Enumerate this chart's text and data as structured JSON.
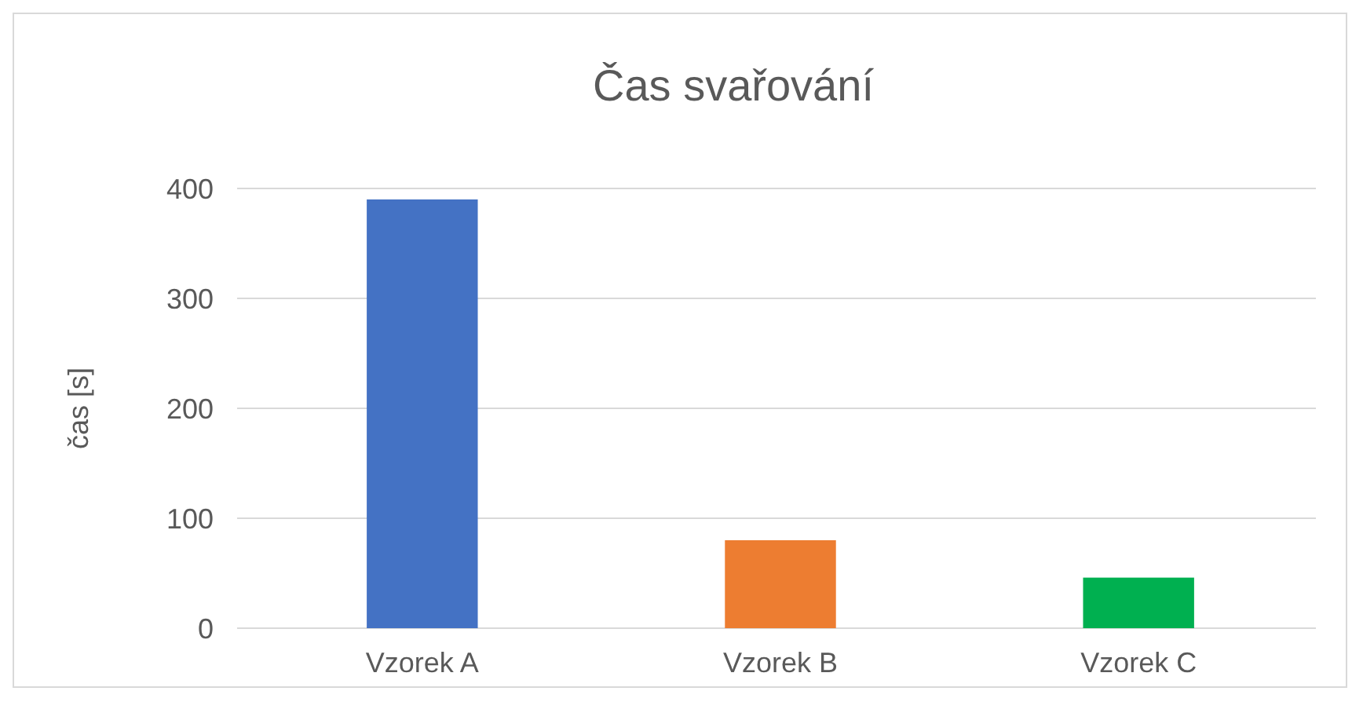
{
  "chart_data": {
    "type": "bar",
    "title": "Čas svařování",
    "ylabel": "čas [s]",
    "categories": [
      "Vzorek A",
      "Vzorek B",
      "Vzorek C"
    ],
    "values": [
      390,
      80,
      46
    ],
    "colors": [
      "#4472c4",
      "#ed7d31",
      "#00b050"
    ],
    "ylim": [
      0,
      400
    ],
    "yticks": [
      0,
      100,
      200,
      300,
      400
    ],
    "grid": "y"
  }
}
